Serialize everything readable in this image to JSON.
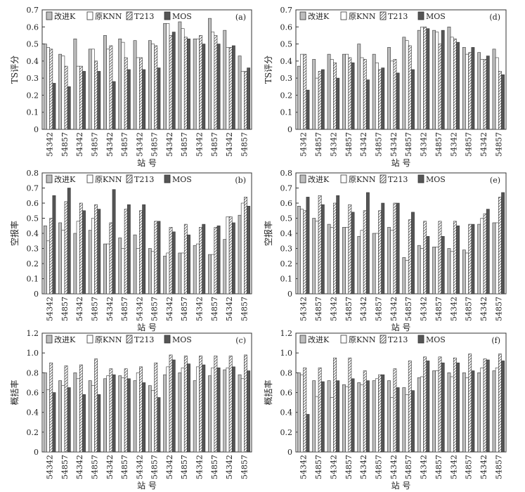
{
  "figure": {
    "legend": [
      "改进K",
      "原KNN",
      "T213",
      "MOS"
    ],
    "xlabel": "站 号"
  },
  "chart_data": [
    {
      "panel_label": "(a)",
      "type": "bar",
      "ylabel": "TS评分",
      "ylim": [
        0,
        0.7
      ],
      "yticks": [
        "0",
        "0.1",
        "0.2",
        "0.3",
        "0.4",
        "0.5",
        "0.6",
        "0.7"
      ],
      "categories": [
        "54342",
        "54857",
        "54342",
        "54857",
        "54342",
        "54857",
        "54342",
        "54857",
        "54342",
        "54857",
        "54342",
        "54857",
        "54342",
        "54857"
      ],
      "series": [
        {
          "name": "改进K",
          "values": [
            0.5,
            0.44,
            0.53,
            0.47,
            0.55,
            0.53,
            0.52,
            0.52,
            0.62,
            0.63,
            0.53,
            0.65,
            0.58,
            0.43
          ]
        },
        {
          "name": "原KNN",
          "values": [
            0.48,
            0.43,
            0.37,
            0.47,
            0.47,
            0.51,
            0.42,
            0.5,
            0.62,
            0.59,
            0.53,
            0.57,
            0.48,
            0.34
          ]
        },
        {
          "name": "T213",
          "values": [
            0.47,
            0.37,
            0.37,
            0.4,
            0.49,
            0.42,
            0.42,
            0.49,
            0.55,
            0.54,
            0.55,
            0.55,
            0.48,
            0.34
          ]
        },
        {
          "name": "MOS",
          "values": [
            0.27,
            0.25,
            0.34,
            0.34,
            0.28,
            0.35,
            0.35,
            0.36,
            0.57,
            0.53,
            0.5,
            0.5,
            0.49,
            0.36
          ]
        }
      ]
    },
    {
      "panel_label": "(d)",
      "type": "bar",
      "ylabel": "TS评分",
      "ylim": [
        0,
        0.7
      ],
      "yticks": [
        "0",
        "0.1",
        "0.2",
        "0.3",
        "0.4",
        "0.5",
        "0.6",
        "0.7"
      ],
      "categories": [
        "54342",
        "54857",
        "54342",
        "54857",
        "54342",
        "54857",
        "54342",
        "54857",
        "54342",
        "54857",
        "54342",
        "54857",
        "54342",
        "54857"
      ],
      "series": [
        {
          "name": "改进K",
          "values": [
            0.37,
            0.41,
            0.44,
            0.44,
            0.5,
            0.44,
            0.48,
            0.54,
            0.58,
            0.58,
            0.6,
            0.48,
            0.45,
            0.47
          ]
        },
        {
          "name": "原KNN",
          "values": [
            0.44,
            0.3,
            0.41,
            0.44,
            0.42,
            0.39,
            0.4,
            0.52,
            0.6,
            0.57,
            0.54,
            0.44,
            0.41,
            0.42
          ]
        },
        {
          "name": "T213",
          "values": [
            0.44,
            0.34,
            0.39,
            0.42,
            0.41,
            0.35,
            0.41,
            0.49,
            0.6,
            0.5,
            0.53,
            0.45,
            0.41,
            0.34
          ]
        },
        {
          "name": "MOS",
          "values": [
            0.23,
            0.35,
            0.3,
            0.39,
            0.29,
            0.36,
            0.33,
            0.35,
            0.59,
            0.58,
            0.51,
            0.48,
            0.43,
            0.32
          ]
        }
      ]
    },
    {
      "panel_label": "(b)",
      "type": "bar",
      "ylabel": "空报率",
      "ylim": [
        0,
        0.8
      ],
      "yticks": [
        "0",
        "0.1",
        "0.2",
        "0.3",
        "0.4",
        "0.5",
        "0.6",
        "0.7",
        "0.8"
      ],
      "categories": [
        "54342",
        "54857",
        "54342",
        "54857",
        "54342",
        "54857",
        "54342",
        "54857",
        "54342",
        "54857",
        "54342",
        "54857",
        "54342",
        "54857"
      ],
      "series": [
        {
          "name": "改进K",
          "values": [
            0.45,
            0.47,
            0.4,
            0.42,
            0.33,
            0.37,
            0.39,
            0.3,
            0.25,
            0.27,
            0.32,
            0.26,
            0.36,
            0.52
          ]
        },
        {
          "name": "原KNN",
          "values": [
            0.35,
            0.42,
            0.48,
            0.5,
            0.33,
            0.3,
            0.3,
            0.28,
            0.27,
            0.27,
            0.33,
            0.26,
            0.51,
            0.6
          ]
        },
        {
          "name": "T213",
          "values": [
            0.5,
            0.61,
            0.6,
            0.59,
            0.47,
            0.56,
            0.55,
            0.48,
            0.44,
            0.46,
            0.44,
            0.44,
            0.51,
            0.64
          ]
        },
        {
          "name": "MOS",
          "values": [
            0.65,
            0.7,
            0.55,
            0.56,
            0.69,
            0.59,
            0.59,
            0.48,
            0.41,
            0.39,
            0.46,
            0.45,
            0.47,
            0.58
          ]
        }
      ]
    },
    {
      "panel_label": "(e)",
      "type": "bar",
      "ylabel": "空报率",
      "ylim": [
        0,
        0.8
      ],
      "yticks": [
        "0",
        "0.1",
        "0.2",
        "0.3",
        "0.4",
        "0.5",
        "0.6",
        "0.7",
        "0.8"
      ],
      "categories": [
        "54342",
        "54857",
        "54342",
        "54857",
        "54342",
        "54857",
        "54342",
        "54857",
        "54342",
        "54857",
        "54342",
        "54857",
        "54342",
        "54857"
      ],
      "series": [
        {
          "name": "改进K",
          "values": [
            0.58,
            0.5,
            0.46,
            0.44,
            0.38,
            0.4,
            0.44,
            0.24,
            0.32,
            0.31,
            0.3,
            0.29,
            0.46,
            0.47
          ]
        },
        {
          "name": "原KNN",
          "values": [
            0.56,
            0.48,
            0.44,
            0.44,
            0.42,
            0.4,
            0.42,
            0.22,
            0.3,
            0.31,
            0.28,
            0.27,
            0.5,
            0.47
          ]
        },
        {
          "name": "T213",
          "values": [
            0.55,
            0.65,
            0.6,
            0.59,
            0.55,
            0.55,
            0.6,
            0.49,
            0.48,
            0.48,
            0.48,
            0.46,
            0.53,
            0.64
          ]
        },
        {
          "name": "MOS",
          "values": [
            0.64,
            0.59,
            0.65,
            0.54,
            0.67,
            0.6,
            0.6,
            0.54,
            0.38,
            0.38,
            0.45,
            0.46,
            0.56,
            0.67
          ]
        }
      ]
    },
    {
      "panel_label": "(c)",
      "type": "bar",
      "ylabel": "概括率",
      "ylim": [
        0,
        1.2
      ],
      "yticks": [
        "0",
        "0.2",
        "0.4",
        "0.6",
        "0.8",
        "1.0",
        "1.2"
      ],
      "categories": [
        "54342",
        "54857",
        "54342",
        "54857",
        "54342",
        "54857",
        "54342",
        "54857",
        "54342",
        "54857",
        "54342",
        "54857",
        "54342",
        "54857"
      ],
      "series": [
        {
          "name": "改进K",
          "values": [
            0.8,
            0.72,
            0.8,
            0.72,
            0.74,
            0.77,
            0.72,
            0.67,
            0.78,
            0.8,
            0.72,
            0.77,
            0.83,
            0.78
          ]
        },
        {
          "name": "原KNN",
          "values": [
            0.63,
            0.67,
            0.74,
            0.67,
            0.77,
            0.75,
            0.8,
            0.62,
            0.86,
            0.85,
            0.86,
            0.85,
            0.85,
            0.74
          ]
        },
        {
          "name": "T213",
          "values": [
            0.9,
            0.87,
            0.88,
            0.94,
            0.84,
            0.84,
            0.86,
            0.9,
            0.98,
            0.97,
            0.97,
            0.97,
            0.97,
            0.98
          ]
        },
        {
          "name": "MOS",
          "values": [
            0.6,
            0.65,
            0.58,
            0.58,
            0.78,
            0.74,
            0.7,
            0.55,
            0.93,
            0.89,
            0.88,
            0.85,
            0.86,
            0.82
          ]
        }
      ]
    },
    {
      "panel_label": "(f)",
      "type": "bar",
      "ylabel": "概括率",
      "ylim": [
        0,
        1.2
      ],
      "yticks": [
        "0",
        "0.2",
        "0.4",
        "0.6",
        "0.8",
        "1.0",
        "1.2"
      ],
      "categories": [
        "54342",
        "54857",
        "54342",
        "54857",
        "54342",
        "54857",
        "54342",
        "54857",
        "54342",
        "54857",
        "54342",
        "54857",
        "54342",
        "54857"
      ],
      "series": [
        {
          "name": "改进K",
          "values": [
            0.8,
            0.72,
            0.72,
            0.68,
            0.7,
            0.72,
            0.72,
            0.65,
            0.75,
            0.82,
            0.8,
            0.8,
            0.8,
            0.82
          ]
        },
        {
          "name": "原KNN",
          "values": [
            0.78,
            0.56,
            0.55,
            0.66,
            0.68,
            0.74,
            0.55,
            0.58,
            0.76,
            0.82,
            0.76,
            0.75,
            0.85,
            0.85
          ]
        },
        {
          "name": "T213",
          "values": [
            0.85,
            0.85,
            0.95,
            0.95,
            0.82,
            0.78,
            0.84,
            0.92,
            0.96,
            0.96,
            0.95,
            0.99,
            0.94,
            0.99
          ]
        },
        {
          "name": "MOS",
          "values": [
            0.38,
            0.71,
            0.72,
            0.74,
            0.72,
            0.78,
            0.65,
            0.62,
            0.92,
            0.9,
            0.9,
            0.82,
            0.93,
            0.92
          ]
        }
      ]
    }
  ]
}
